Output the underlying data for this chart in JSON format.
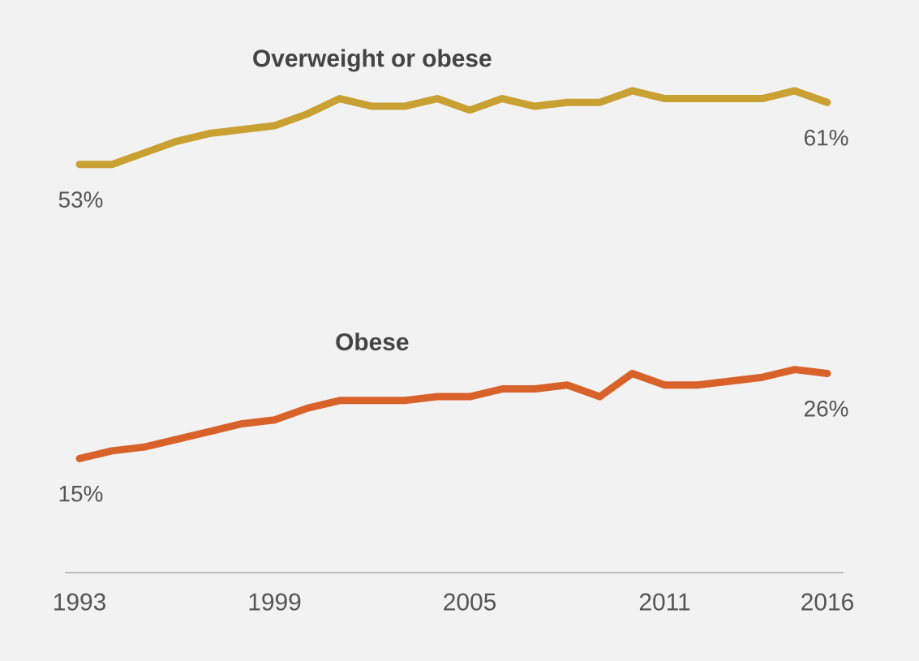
{
  "chart_data": {
    "type": "line",
    "x": [
      1993,
      1994,
      1995,
      1996,
      1997,
      1998,
      1999,
      2000,
      2001,
      2002,
      2003,
      2004,
      2005,
      2006,
      2007,
      2008,
      2009,
      2010,
      2011,
      2012,
      2013,
      2014,
      2015,
      2016
    ],
    "series": [
      {
        "name": "Overweight or obese",
        "color": "#c9a032",
        "values": [
          53,
          53,
          54.5,
          56,
          57,
          57.5,
          58,
          59.5,
          61.5,
          60.5,
          60.5,
          61.5,
          60,
          61.5,
          60.5,
          61,
          61,
          62.5,
          61.5,
          61.5,
          61.5,
          61.5,
          62.5,
          61
        ],
        "value_labels": [
          "53%",
          null,
          null,
          null,
          null,
          null,
          null,
          null,
          null,
          null,
          null,
          null,
          null,
          null,
          null,
          null,
          null,
          null,
          null,
          null,
          null,
          null,
          null,
          "61%"
        ]
      },
      {
        "name": "Obese",
        "color": "#d9622b",
        "values": [
          15,
          16,
          16.5,
          17.5,
          18.5,
          19.5,
          20,
          21.5,
          22.5,
          22.5,
          22.5,
          23,
          23,
          24,
          24,
          24.5,
          23,
          26,
          24.5,
          24.5,
          25,
          25.5,
          26.5,
          26
        ],
        "value_labels": [
          "15%",
          null,
          null,
          null,
          null,
          null,
          null,
          null,
          null,
          null,
          null,
          null,
          null,
          null,
          null,
          null,
          null,
          null,
          null,
          null,
          null,
          null,
          null,
          "26%"
        ]
      }
    ],
    "xlim": [
      1992.55,
      2016.5
    ],
    "xticks": [
      1993,
      1999,
      2005,
      2011,
      2016
    ],
    "tick_labels": "x",
    "grid": false,
    "legend": false,
    "marker": "none",
    "line_style": "solid"
  }
}
